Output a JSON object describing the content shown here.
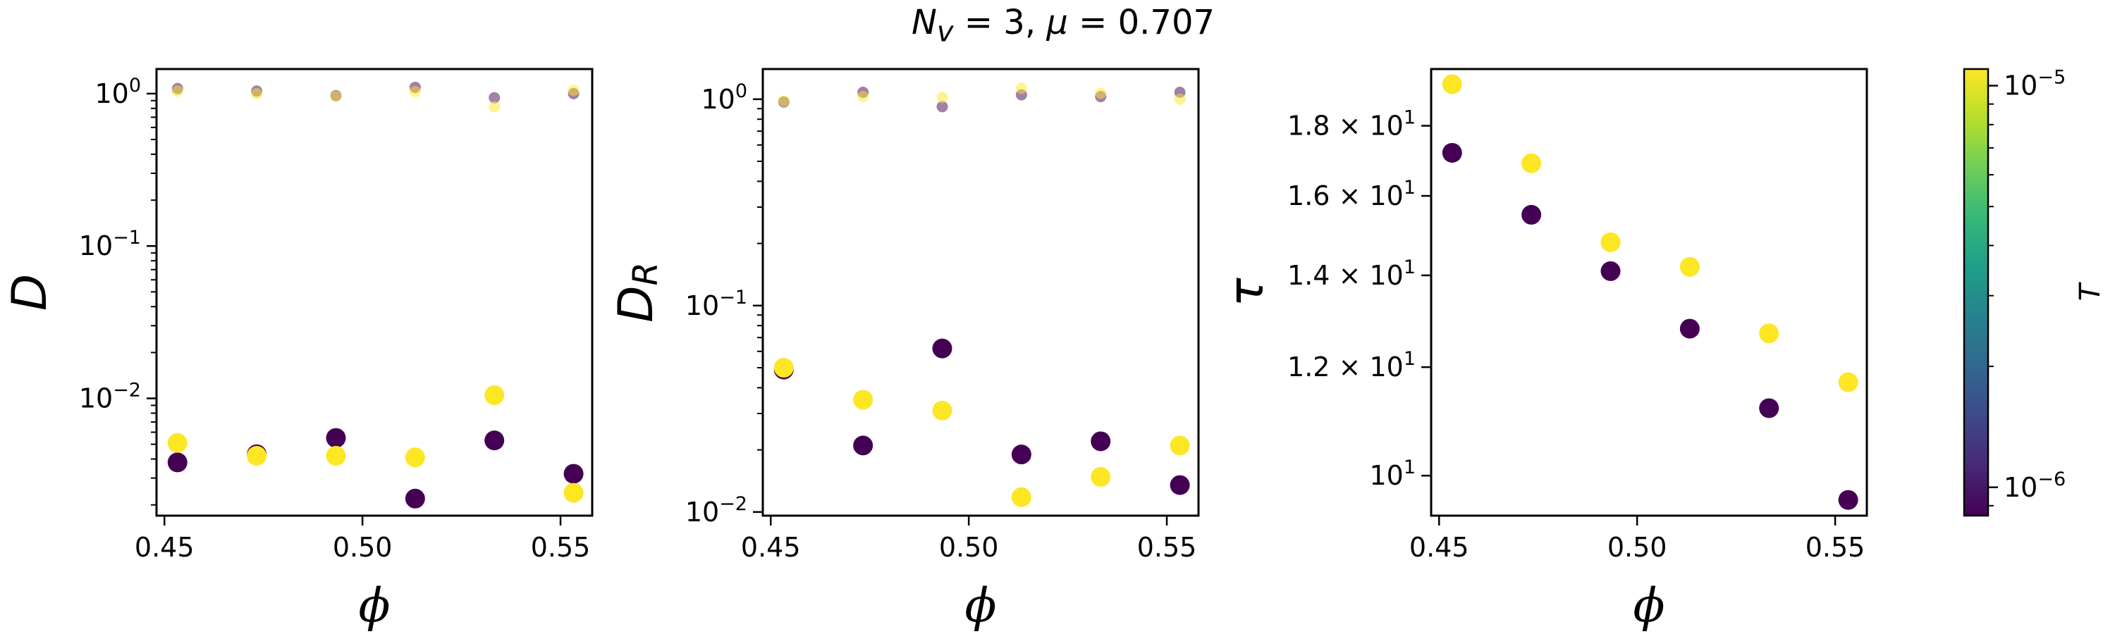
{
  "figure": {
    "suptitle": "N_v = 3, μ = 0.707",
    "suptitle_parts": {
      "n": "N",
      "sub": "v",
      "mid": " = 3, ",
      "mu": "μ",
      "rest": " = 0.707"
    }
  },
  "colorbar": {
    "label": "T",
    "ticks": [
      {
        "value": 1e-05,
        "base": "10",
        "exp": "−5"
      },
      {
        "value": 1e-06,
        "base": "10",
        "exp": "−6"
      }
    ],
    "colormap": "viridis",
    "range": [
      8.5e-07,
      1.1e-05
    ],
    "scale": "log"
  },
  "chart_data": [
    {
      "type": "scatter",
      "title": "",
      "xlabel": "ϕ",
      "ylabel": {
        "base": "D",
        "sub": ""
      },
      "xlim": [
        0.448,
        0.558
      ],
      "ylim": [
        0.0017,
        1.45
      ],
      "yscale": "log",
      "xticks": [
        {
          "v": 0.45,
          "label": "0.45"
        },
        {
          "v": 0.5,
          "label": "0.50"
        },
        {
          "v": 0.55,
          "label": "0.55"
        }
      ],
      "yticks": [
        {
          "v": 1,
          "base": "10",
          "exp": "0"
        },
        {
          "v": 0.1,
          "base": "10",
          "exp": "−1"
        },
        {
          "v": 0.01,
          "base": "10",
          "exp": "−2"
        }
      ],
      "x": [
        0.4533,
        0.4733,
        0.4933,
        0.5133,
        0.5333,
        0.5533
      ],
      "series": [
        {
          "T": 1e-06,
          "color": "#440154",
          "alpha": 1.0,
          "size": "large",
          "values": [
            0.0038,
            0.0043,
            0.0055,
            0.0022,
            0.0053,
            0.0032
          ]
        },
        {
          "T": 1e-05,
          "color": "#fde725",
          "alpha": 1.0,
          "size": "large",
          "values": [
            0.0051,
            0.0042,
            0.0042,
            0.0041,
            0.0105,
            0.0024
          ]
        },
        {
          "T": 1e-06,
          "color": "#440154",
          "alpha": 0.5,
          "size": "small",
          "values": [
            1.08,
            1.04,
            0.97,
            1.1,
            0.94,
            1.0
          ]
        },
        {
          "T": 1e-05,
          "color": "#fde725",
          "alpha": 0.5,
          "size": "small",
          "values": [
            1.04,
            1.0,
            0.96,
            1.03,
            0.82,
            1.05
          ]
        }
      ]
    },
    {
      "type": "scatter",
      "title": "",
      "xlabel": "ϕ",
      "ylabel": {
        "base": "D",
        "sub": "R"
      },
      "xlim": [
        0.448,
        0.558
      ],
      "ylim": [
        0.0096,
        1.4
      ],
      "yscale": "log",
      "xticks": [
        {
          "v": 0.45,
          "label": "0.45"
        },
        {
          "v": 0.5,
          "label": "0.50"
        },
        {
          "v": 0.55,
          "label": "0.55"
        }
      ],
      "yticks": [
        {
          "v": 1,
          "base": "10",
          "exp": "0"
        },
        {
          "v": 0.1,
          "base": "10",
          "exp": "−1"
        },
        {
          "v": 0.01,
          "base": "10",
          "exp": "−2"
        }
      ],
      "x": [
        0.4533,
        0.4733,
        0.4933,
        0.5133,
        0.5333,
        0.5533
      ],
      "series": [
        {
          "T": 1e-06,
          "color": "#440154",
          "alpha": 1.0,
          "size": "large",
          "values": [
            0.049,
            0.021,
            0.062,
            0.019,
            0.022,
            0.0135
          ]
        },
        {
          "T": 1e-05,
          "color": "#fde725",
          "alpha": 1.0,
          "size": "large",
          "values": [
            0.05,
            0.035,
            0.031,
            0.0118,
            0.0148,
            0.021
          ]
        },
        {
          "T": 1e-06,
          "color": "#440154",
          "alpha": 0.5,
          "size": "small",
          "values": [
            0.97,
            1.08,
            0.92,
            1.05,
            1.03,
            1.08
          ]
        },
        {
          "T": 1e-05,
          "color": "#fde725",
          "alpha": 0.5,
          "size": "small",
          "values": [
            0.98,
            1.03,
            1.02,
            1.13,
            1.07,
            1.0
          ]
        }
      ]
    },
    {
      "type": "scatter",
      "title": "",
      "xlabel": "ϕ",
      "ylabel": {
        "base": "τ",
        "sub": ""
      },
      "xlim": [
        0.448,
        0.558
      ],
      "ylim": [
        9.35,
        19.8
      ],
      "yscale": "log",
      "xticks": [
        {
          "v": 0.45,
          "label": "0.45"
        },
        {
          "v": 0.5,
          "label": "0.50"
        },
        {
          "v": 0.55,
          "label": "0.55"
        }
      ],
      "yticks": [
        {
          "v": 18,
          "mant": "1.8 × ",
          "base": "10",
          "exp": "1"
        },
        {
          "v": 16,
          "mant": "1.6 × ",
          "base": "10",
          "exp": "1"
        },
        {
          "v": 14,
          "mant": "1.4 × ",
          "base": "10",
          "exp": "1"
        },
        {
          "v": 12,
          "mant": "1.2 × ",
          "base": "10",
          "exp": "1"
        },
        {
          "v": 10,
          "mant": "",
          "base": "10",
          "exp": "1"
        }
      ],
      "x": [
        0.4533,
        0.4733,
        0.4933,
        0.5133,
        0.5333,
        0.5533
      ],
      "series": [
        {
          "T": 1e-06,
          "color": "#440154",
          "alpha": 1.0,
          "size": "large",
          "values": [
            17.2,
            15.5,
            14.1,
            12.8,
            11.2,
            9.6
          ]
        },
        {
          "T": 1e-05,
          "color": "#fde725",
          "alpha": 1.0,
          "size": "large",
          "values": [
            19.3,
            16.9,
            14.8,
            14.2,
            12.7,
            11.7
          ]
        }
      ]
    }
  ]
}
